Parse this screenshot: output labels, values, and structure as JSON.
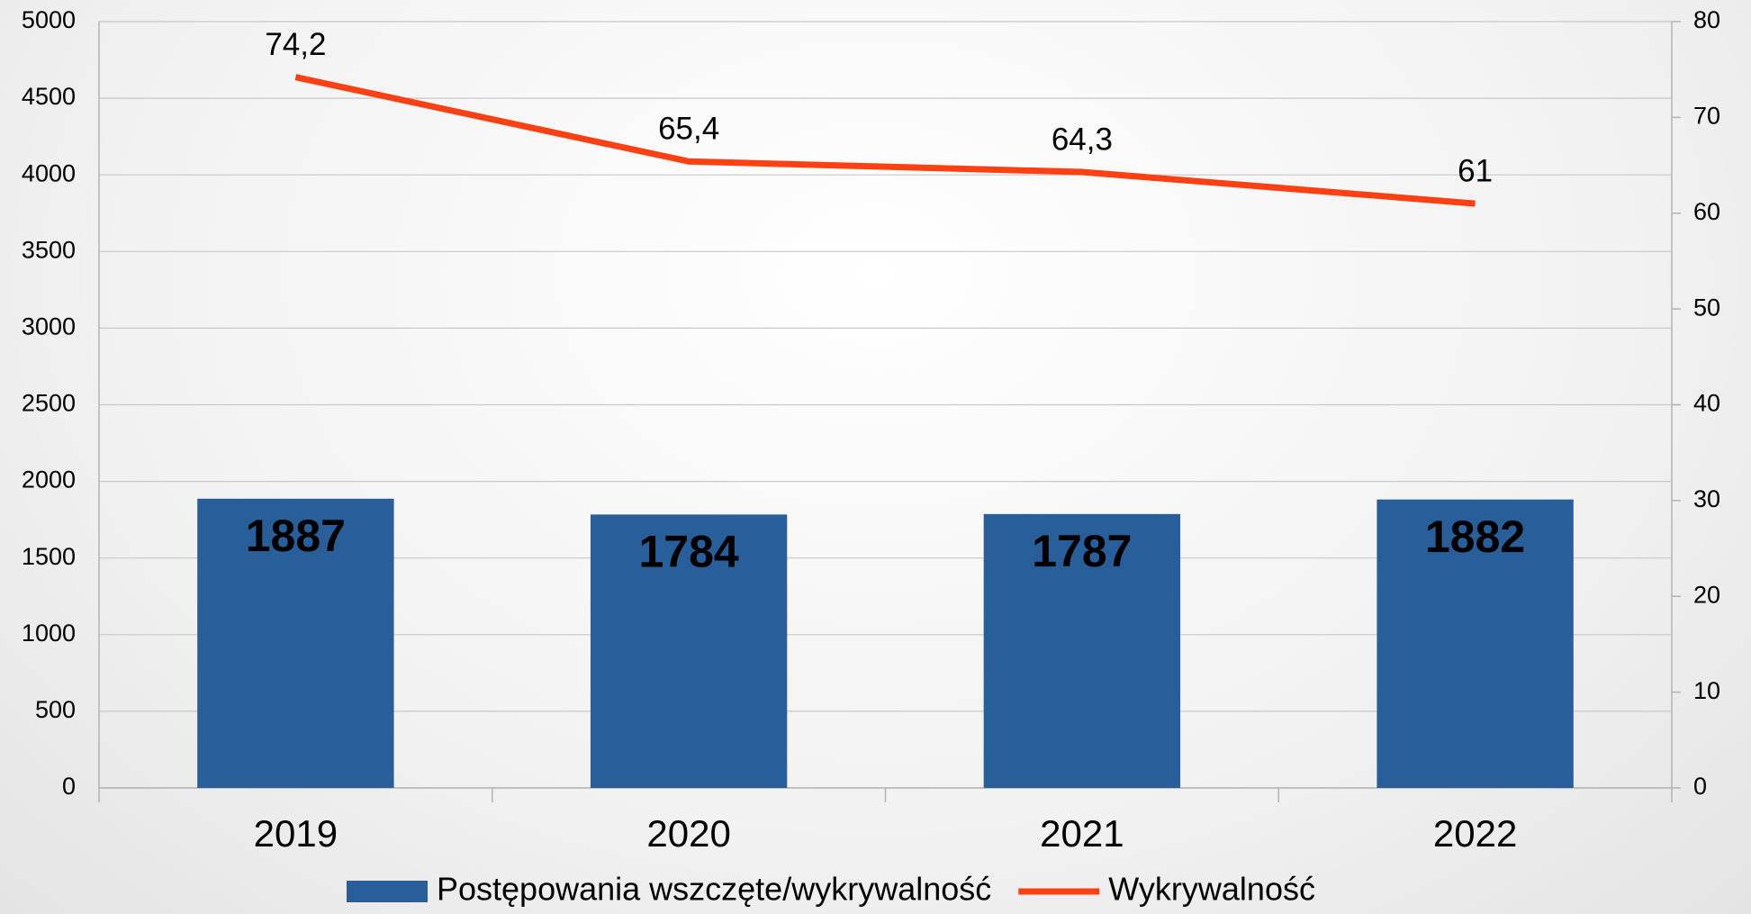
{
  "chart_data": {
    "type": "bar+line",
    "categories": [
      "2019",
      "2020",
      "2021",
      "2022"
    ],
    "series": [
      {
        "name": "Postępowania wszczęte/wykrywalność",
        "type": "bar",
        "color": "#2a5e99",
        "values": [
          1887,
          1784,
          1787,
          1882
        ]
      },
      {
        "name": "Wykrywalność",
        "type": "line",
        "axis": "y2",
        "color": "#ff4013",
        "values": [
          74.2,
          65.4,
          64.3,
          61
        ],
        "value_labels": [
          "74,2",
          "65,4",
          "64,3",
          "61"
        ]
      }
    ],
    "ylim": [
      0,
      5000
    ],
    "yticks": [
      0,
      500,
      1000,
      1500,
      2000,
      2500,
      3000,
      3500,
      4000,
      4500,
      5000
    ],
    "y2lim": [
      0,
      80
    ],
    "y2ticks": [
      0,
      10,
      20,
      30,
      40,
      50,
      60,
      70,
      80
    ],
    "grid": true,
    "legend": "bottom"
  }
}
